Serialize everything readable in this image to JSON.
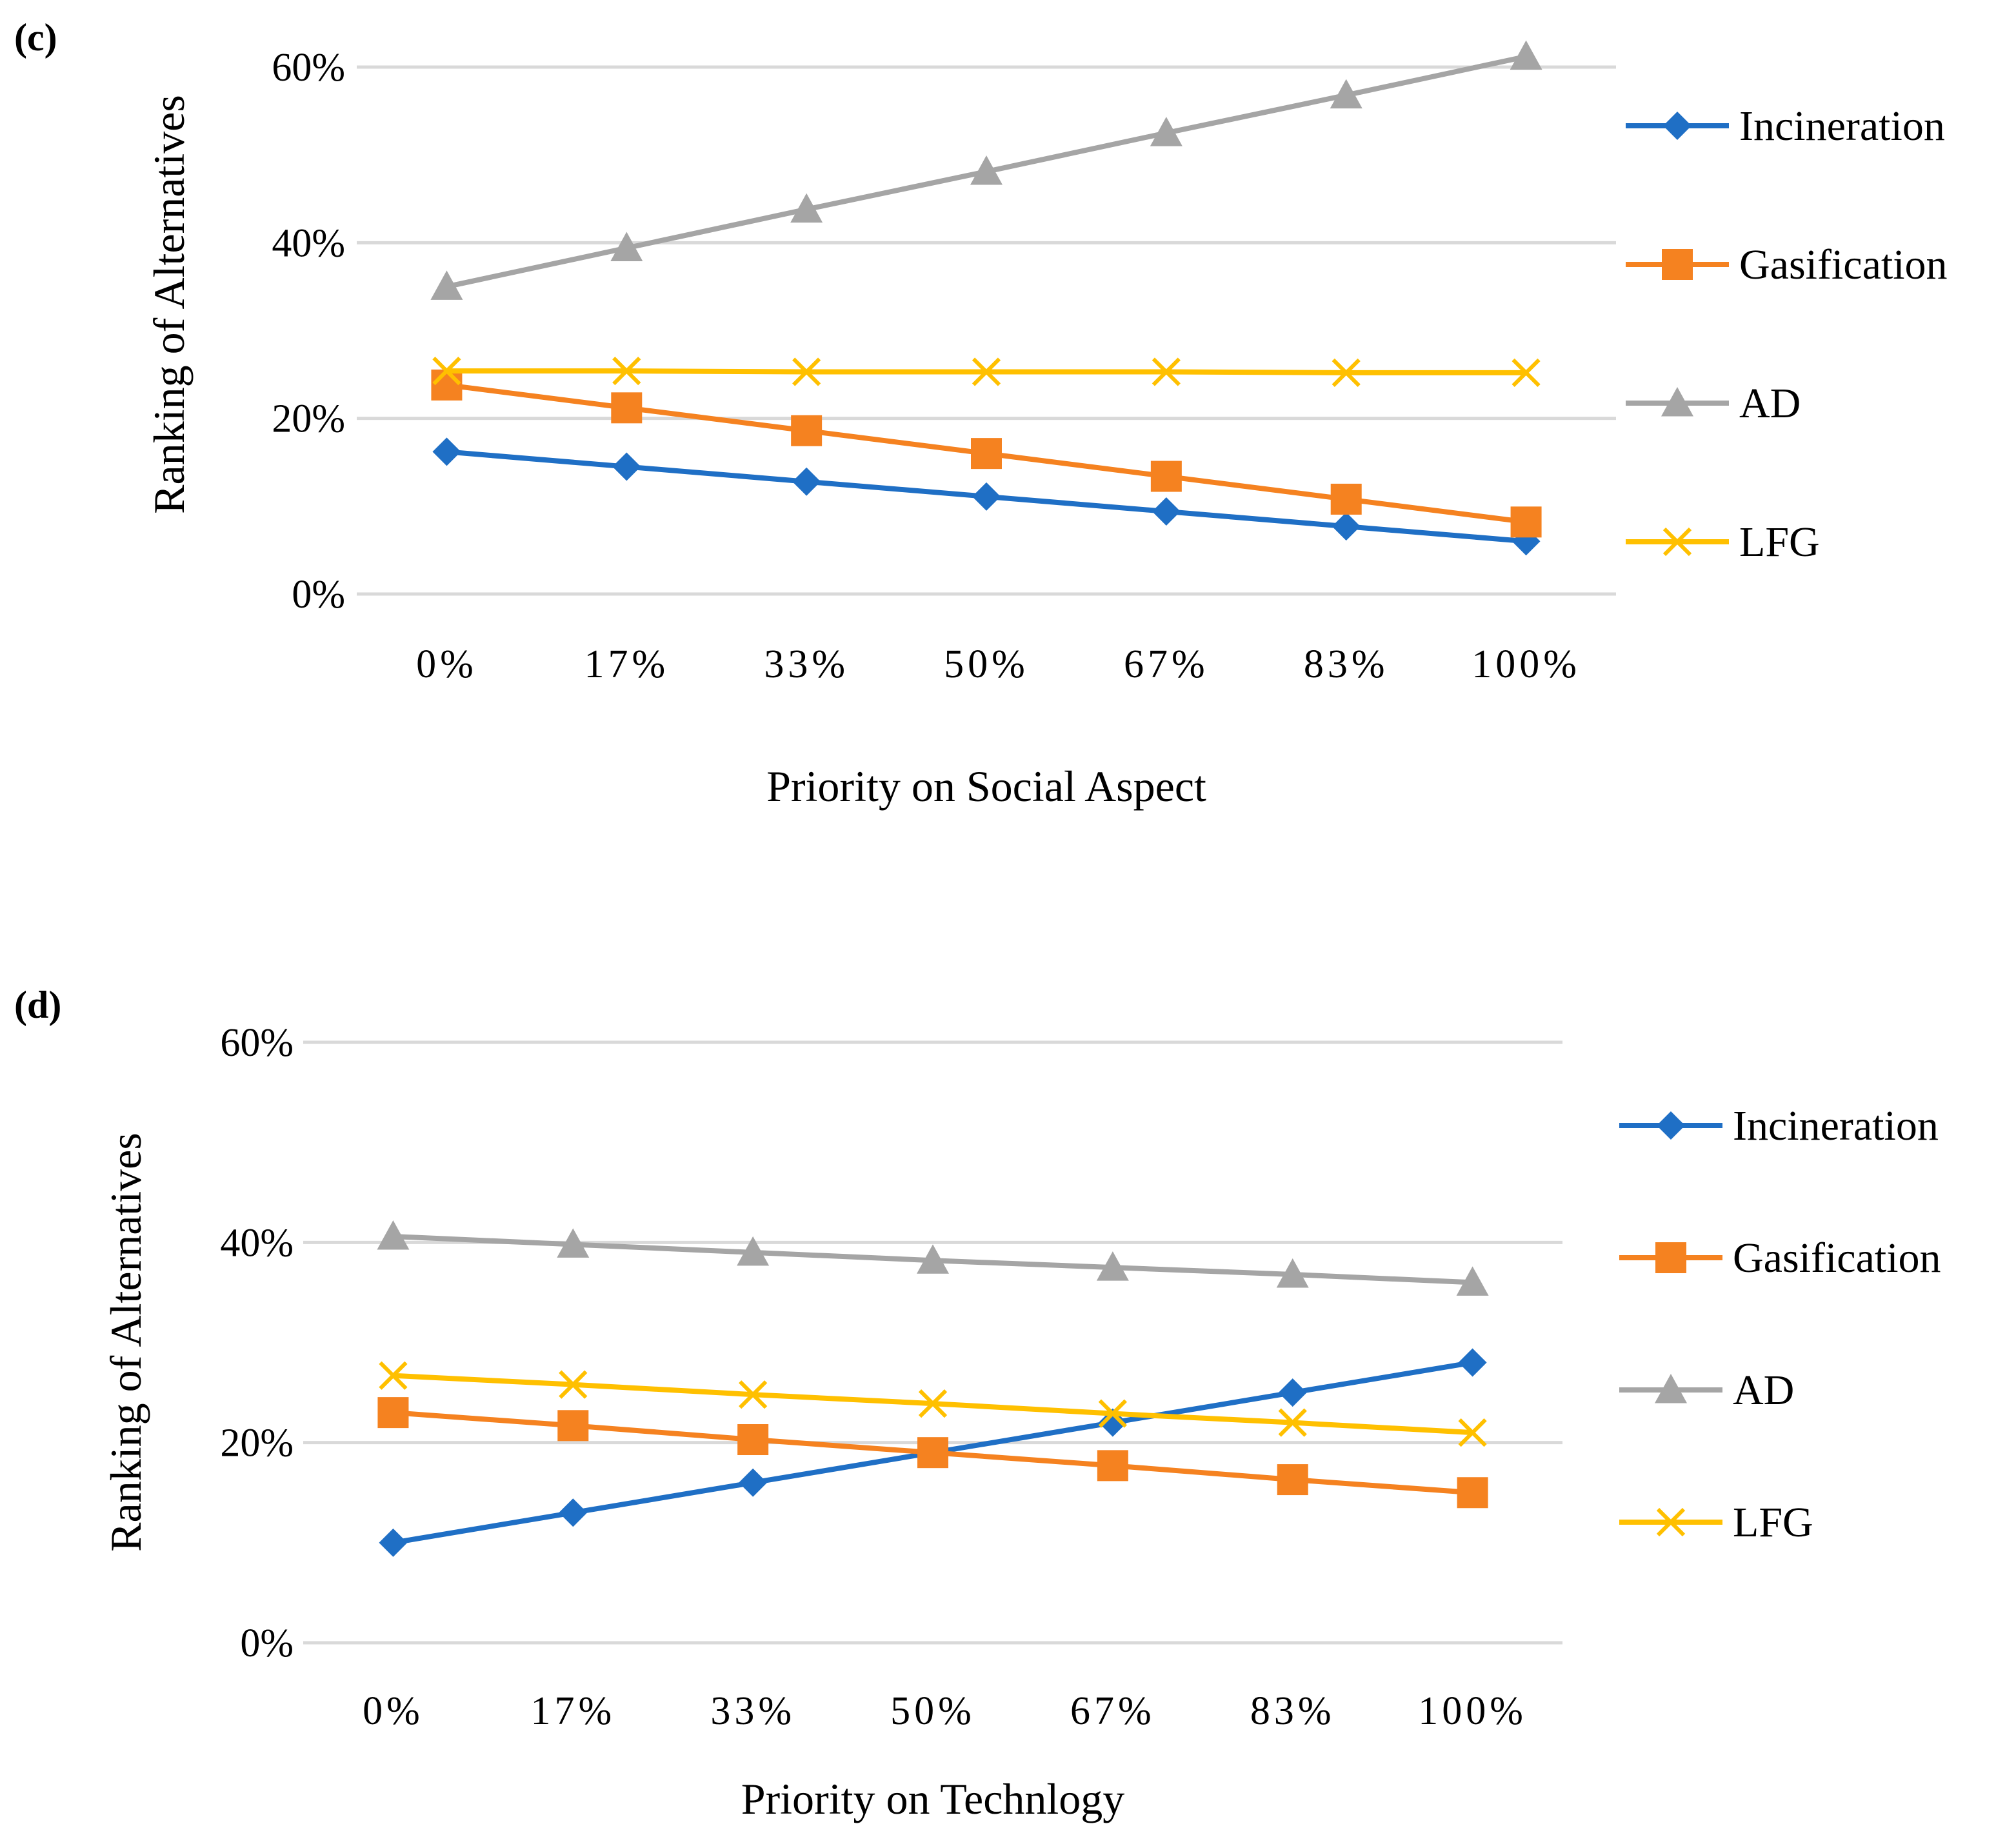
{
  "chart_data": [
    {
      "type": "line",
      "panel_label": "(c)",
      "title": "",
      "xlabel": "Priority on Social Aspect",
      "ylabel": "Ranking of Alternatives",
      "categories": [
        "0%",
        "17%",
        "33%",
        "50%",
        "67%",
        "83%",
        "100%"
      ],
      "yticks": [
        "0%",
        "20%",
        "40%",
        "60%"
      ],
      "ylim": [
        0,
        60
      ],
      "grid": true,
      "legend_position": "right",
      "series": [
        {
          "name": "Incineration",
          "color": "#1f6fc5",
          "marker": "diamond",
          "values": [
            16.2,
            14.5,
            12.8,
            11.1,
            9.4,
            7.7,
            6.0
          ]
        },
        {
          "name": "Gasification",
          "color": "#f58220",
          "marker": "square",
          "values": [
            23.8,
            21.2,
            18.6,
            16.0,
            13.4,
            10.8,
            8.2
          ]
        },
        {
          "name": "AD",
          "color": "#a5a5a5",
          "marker": "triangle",
          "values": [
            35.0,
            39.4,
            43.8,
            48.1,
            52.5,
            56.8,
            61.2
          ]
        },
        {
          "name": "LFG",
          "color": "#ffc000",
          "marker": "x",
          "values": [
            25.4,
            25.4,
            25.3,
            25.3,
            25.3,
            25.2,
            25.2
          ]
        }
      ]
    },
    {
      "type": "line",
      "panel_label": "(d)",
      "title": "",
      "xlabel": "Priority on Technlogy",
      "ylabel": "Ranking of Alternatives",
      "categories": [
        "0%",
        "17%",
        "33%",
        "50%",
        "67%",
        "83%",
        "100%"
      ],
      "yticks": [
        "0%",
        "20%",
        "40%",
        "60%"
      ],
      "ylim": [
        0,
        60
      ],
      "grid": true,
      "legend_position": "right",
      "series": [
        {
          "name": "Incineration",
          "color": "#1f6fc5",
          "marker": "diamond",
          "values": [
            10.0,
            13.0,
            16.0,
            19.0,
            22.0,
            25.0,
            28.0
          ]
        },
        {
          "name": "Gasification",
          "color": "#f58220",
          "marker": "square",
          "values": [
            23.0,
            21.7,
            20.3,
            19.0,
            17.7,
            16.3,
            15.0
          ]
        },
        {
          "name": "AD",
          "color": "#a5a5a5",
          "marker": "triangle",
          "values": [
            40.6,
            39.8,
            39.0,
            38.2,
            37.5,
            36.8,
            36.0
          ]
        },
        {
          "name": "LFG",
          "color": "#ffc000",
          "marker": "x",
          "values": [
            26.7,
            25.8,
            24.8,
            23.9,
            22.9,
            22.0,
            21.0
          ]
        }
      ]
    }
  ]
}
